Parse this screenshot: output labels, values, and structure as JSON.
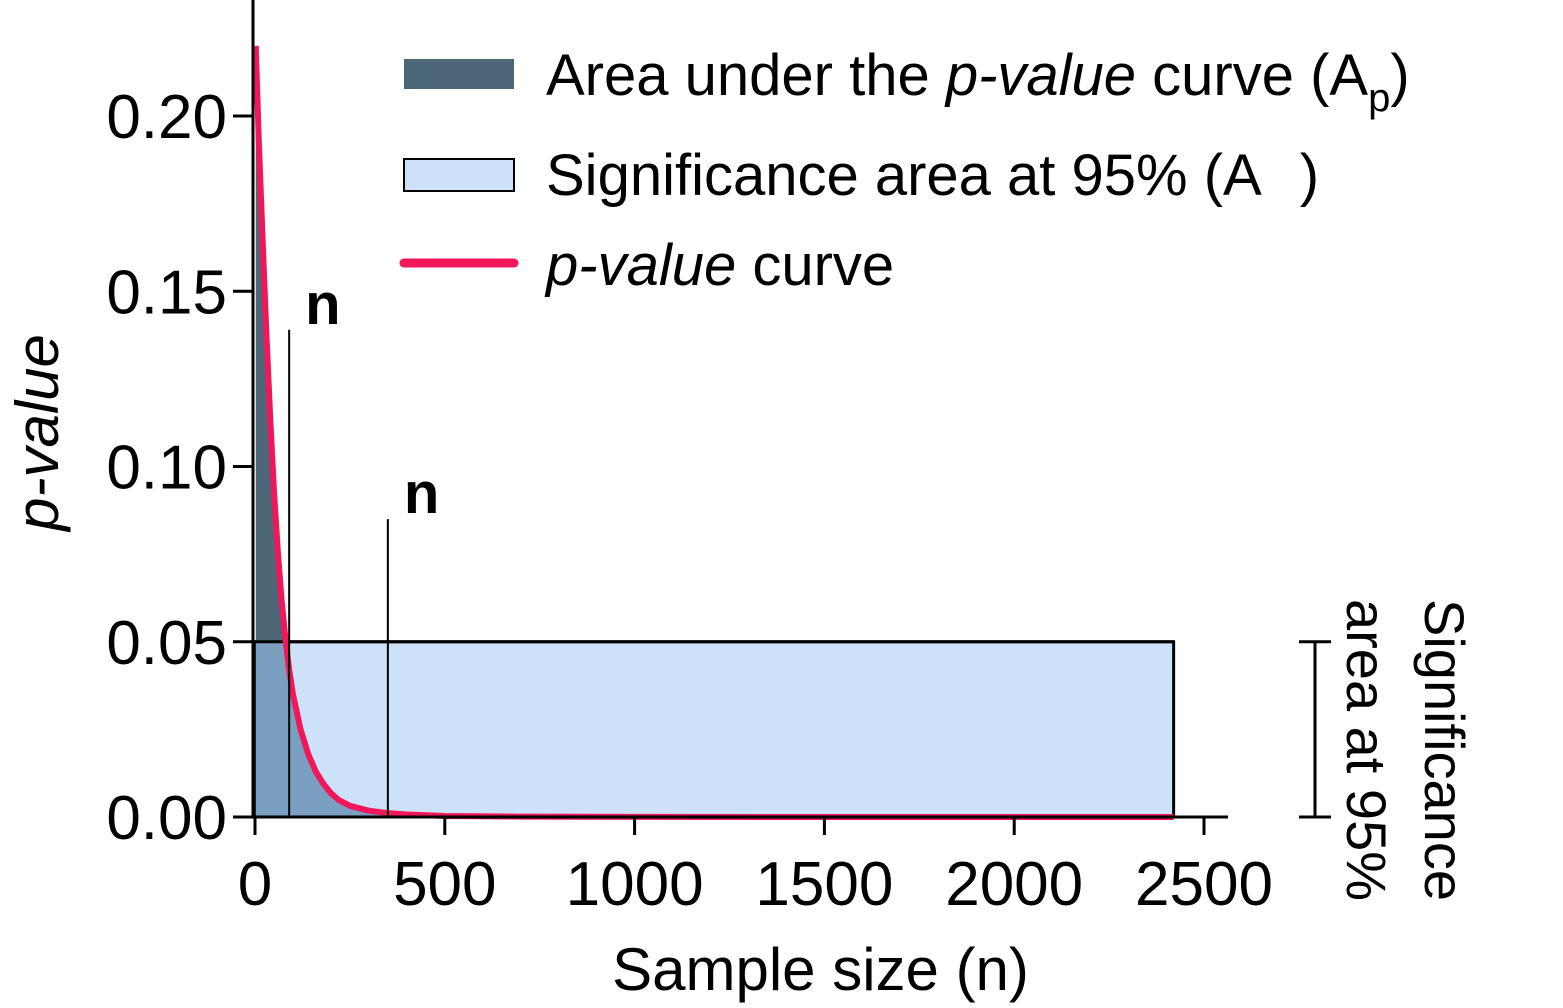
{
  "chart_data": {
    "type": "area",
    "xlabel": "Sample size (n)",
    "ylabel": "p-value",
    "xlim": [
      0,
      2600
    ],
    "ylim": [
      0,
      0.22
    ],
    "x_ticks": [
      0,
      500,
      1000,
      1500,
      2000,
      2500
    ],
    "x_tick_labels": [
      "0",
      "500",
      "1000",
      "1500",
      "2000",
      "2500"
    ],
    "y_ticks": [
      0,
      0.05,
      0.1,
      0.15,
      0.2
    ],
    "y_tick_labels": [
      "0.00",
      "0.05",
      "0.10",
      "0.15",
      "0.20"
    ],
    "grid": false,
    "legend_position": "top-right",
    "legend": [
      {
        "kind": "area",
        "text_parts": [
          {
            "t": "Area under the ",
            "i": false
          },
          {
            "t": "p-value",
            "i": true
          },
          {
            "t": " curve (A",
            "i": false
          },
          {
            "t": "p",
            "i": false,
            "sub": true
          },
          {
            "t": ")",
            "i": false
          }
        ],
        "color": "#4d6779"
      },
      {
        "kind": "box",
        "text_parts": [
          {
            "t": "Significance area at 95% (A",
            "i": false
          },
          {
            "t": ")",
            "i": false
          }
        ],
        "color": "#cde2f8"
      },
      {
        "kind": "line",
        "text_parts": [
          {
            "t": "p-value",
            "i": true
          },
          {
            "t": " curve",
            "i": false
          }
        ],
        "color": "#f0185a"
      }
    ],
    "series": [
      {
        "name": "p-value curve",
        "x": [
          2,
          10,
          20,
          30,
          40,
          50,
          60,
          70,
          80,
          90,
          100,
          120,
          140,
          160,
          180,
          200,
          220,
          250,
          300,
          350,
          400,
          500,
          700,
          1000,
          1500,
          2000,
          2420
        ],
        "y": [
          0.22,
          0.193,
          0.165,
          0.138,
          0.114,
          0.093,
          0.076,
          0.062,
          0.051,
          0.042,
          0.035,
          0.025,
          0.018,
          0.013,
          0.0095,
          0.0068,
          0.0049,
          0.0032,
          0.0018,
          0.0011,
          0.0007,
          0.0003,
          0.0001,
          3e-05,
          1e-05,
          0.0,
          0.0
        ]
      }
    ],
    "significance_area": {
      "x": [
        0,
        2420
      ],
      "y": [
        0,
        0.05
      ]
    },
    "markers": [
      {
        "x": 90,
        "y_top": 0.139,
        "label": "n"
      },
      {
        "x": 350,
        "y_top": 0.085,
        "label": "n"
      }
    ],
    "side_bracket": {
      "y": [
        0,
        0.05
      ],
      "label_lines": [
        "Significance",
        "area at 95%"
      ]
    },
    "colors": {
      "area_dark": "#4d6779",
      "area_light": "#7a9fc0",
      "significance_fill": "#cde2f8",
      "curve": "#f0185a",
      "axis": "#000000"
    }
  }
}
